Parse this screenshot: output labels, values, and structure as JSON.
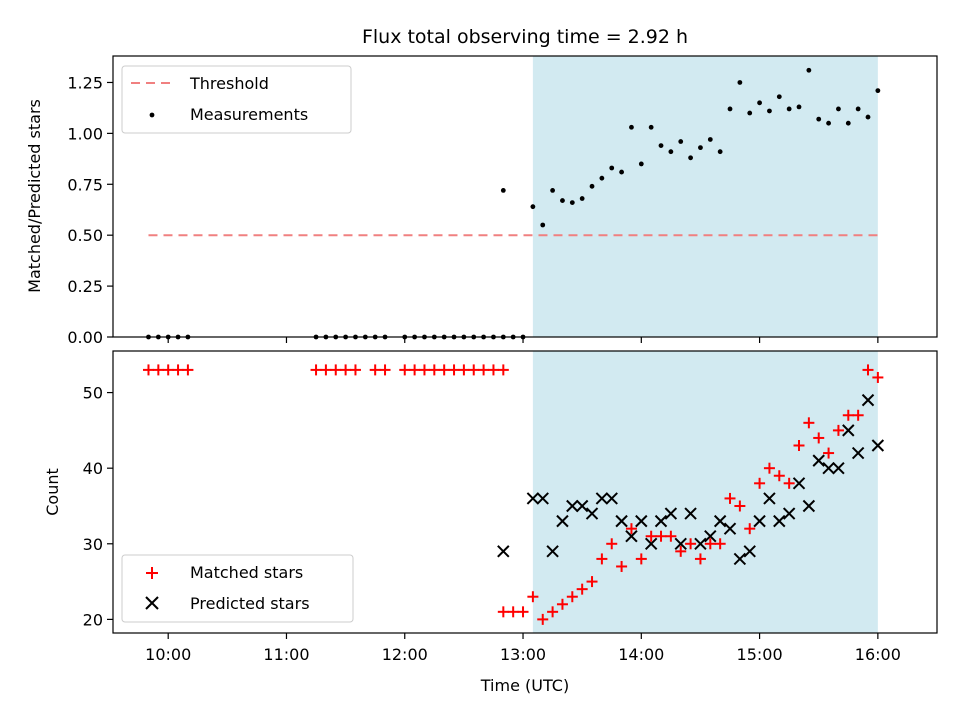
{
  "title": "Flux total observing time = 2.92 h",
  "chart_data": [
    {
      "type": "scatter",
      "panel": "top",
      "ylabel": "Matched/Predicted stars",
      "ylim": [
        0,
        1.38
      ],
      "xlim": [
        "09:32",
        "16:30"
      ],
      "yticks": [
        0,
        0.25,
        0.5,
        0.75,
        1.0,
        1.25
      ],
      "ytick_labels": [
        "0.00",
        "0.25",
        "0.50",
        "0.75",
        "1.00",
        "1.25"
      ],
      "shaded_region": {
        "from": "13:05",
        "to": "16:00",
        "color": "#add8e6"
      },
      "legend": {
        "placement": "top-left",
        "entries": [
          "Threshold",
          "Measurements"
        ]
      },
      "threshold": {
        "name": "Threshold",
        "value": 0.5,
        "x_from": "09:50",
        "x_to": "16:00",
        "color": "#f08080"
      },
      "series": [
        {
          "name": "Measurements",
          "color": "#000000",
          "points": [
            [
              "09:50",
              0
            ],
            [
              "09:55",
              0
            ],
            [
              "10:00",
              0
            ],
            [
              "10:05",
              0
            ],
            [
              "10:10",
              0
            ],
            [
              "11:15",
              0
            ],
            [
              "11:20",
              0
            ],
            [
              "11:25",
              0
            ],
            [
              "11:30",
              0
            ],
            [
              "11:35",
              0
            ],
            [
              "11:40",
              0
            ],
            [
              "11:45",
              0
            ],
            [
              "11:50",
              0
            ],
            [
              "12:00",
              0
            ],
            [
              "12:05",
              0
            ],
            [
              "12:10",
              0
            ],
            [
              "12:15",
              0
            ],
            [
              "12:20",
              0
            ],
            [
              "12:25",
              0
            ],
            [
              "12:30",
              0
            ],
            [
              "12:35",
              0
            ],
            [
              "12:40",
              0
            ],
            [
              "12:45",
              0
            ],
            [
              "12:50",
              0
            ],
            [
              "12:55",
              0
            ],
            [
              "13:00",
              0
            ],
            [
              "12:50",
              0.72
            ],
            [
              "13:05",
              0.64
            ],
            [
              "13:10",
              0.55
            ],
            [
              "13:15",
              0.72
            ],
            [
              "13:20",
              0.67
            ],
            [
              "13:25",
              0.66
            ],
            [
              "13:30",
              0.68
            ],
            [
              "13:35",
              0.74
            ],
            [
              "13:40",
              0.78
            ],
            [
              "13:45",
              0.83
            ],
            [
              "13:50",
              0.81
            ],
            [
              "13:55",
              1.03
            ],
            [
              "14:00",
              0.85
            ],
            [
              "14:05",
              1.03
            ],
            [
              "14:10",
              0.94
            ],
            [
              "14:15",
              0.91
            ],
            [
              "14:20",
              0.96
            ],
            [
              "14:25",
              0.88
            ],
            [
              "14:30",
              0.93
            ],
            [
              "14:35",
              0.97
            ],
            [
              "14:40",
              0.91
            ],
            [
              "14:45",
              1.12
            ],
            [
              "14:50",
              1.25
            ],
            [
              "14:55",
              1.1
            ],
            [
              "15:00",
              1.15
            ],
            [
              "15:05",
              1.11
            ],
            [
              "15:10",
              1.18
            ],
            [
              "15:15",
              1.12
            ],
            [
              "15:20",
              1.13
            ],
            [
              "15:25",
              1.31
            ],
            [
              "15:30",
              1.07
            ],
            [
              "15:35",
              1.05
            ],
            [
              "15:40",
              1.12
            ],
            [
              "15:45",
              1.05
            ],
            [
              "15:50",
              1.12
            ],
            [
              "15:55",
              1.08
            ],
            [
              "16:00",
              1.21
            ]
          ]
        }
      ]
    },
    {
      "type": "scatter",
      "panel": "bottom",
      "xlabel": "Time (UTC)",
      "ylabel": "Count",
      "ylim": [
        18.2,
        55.5
      ],
      "xlim": [
        "09:32",
        "16:30"
      ],
      "yticks": [
        20,
        30,
        40,
        50
      ],
      "xticks": [
        "10:00",
        "11:00",
        "12:00",
        "13:00",
        "14:00",
        "15:00",
        "16:00"
      ],
      "shaded_region": {
        "from": "13:05",
        "to": "16:00",
        "color": "#add8e6"
      },
      "legend": {
        "placement": "bottom-left",
        "entries": [
          "Matched stars",
          "Predicted stars"
        ]
      },
      "series": [
        {
          "name": "Matched stars",
          "marker": "plus",
          "color": "#ff0000",
          "points": [
            [
              "09:50",
              53
            ],
            [
              "09:55",
              53
            ],
            [
              "10:00",
              53
            ],
            [
              "10:05",
              53
            ],
            [
              "10:10",
              53
            ],
            [
              "11:15",
              53
            ],
            [
              "11:20",
              53
            ],
            [
              "11:25",
              53
            ],
            [
              "11:30",
              53
            ],
            [
              "11:35",
              53
            ],
            [
              "11:45",
              53
            ],
            [
              "11:50",
              53
            ],
            [
              "12:00",
              53
            ],
            [
              "12:05",
              53
            ],
            [
              "12:10",
              53
            ],
            [
              "12:15",
              53
            ],
            [
              "12:20",
              53
            ],
            [
              "12:25",
              53
            ],
            [
              "12:30",
              53
            ],
            [
              "12:35",
              53
            ],
            [
              "12:40",
              53
            ],
            [
              "12:45",
              53
            ],
            [
              "12:50",
              53
            ],
            [
              "12:50",
              21
            ],
            [
              "12:55",
              21
            ],
            [
              "13:00",
              21
            ],
            [
              "13:05",
              23
            ],
            [
              "13:10",
              20
            ],
            [
              "13:15",
              21
            ],
            [
              "13:20",
              22
            ],
            [
              "13:25",
              23
            ],
            [
              "13:30",
              24
            ],
            [
              "13:35",
              25
            ],
            [
              "13:40",
              28
            ],
            [
              "13:45",
              30
            ],
            [
              "13:50",
              27
            ],
            [
              "13:55",
              32
            ],
            [
              "14:00",
              28
            ],
            [
              "14:05",
              31
            ],
            [
              "14:10",
              31
            ],
            [
              "14:15",
              31
            ],
            [
              "14:20",
              29
            ],
            [
              "14:25",
              30
            ],
            [
              "14:30",
              28
            ],
            [
              "14:35",
              30
            ],
            [
              "14:40",
              30
            ],
            [
              "14:45",
              36
            ],
            [
              "14:50",
              35
            ],
            [
              "14:55",
              32
            ],
            [
              "15:00",
              38
            ],
            [
              "15:05",
              40
            ],
            [
              "15:10",
              39
            ],
            [
              "15:15",
              38
            ],
            [
              "15:20",
              43
            ],
            [
              "15:25",
              46
            ],
            [
              "15:30",
              44
            ],
            [
              "15:35",
              42
            ],
            [
              "15:40",
              45
            ],
            [
              "15:45",
              47
            ],
            [
              "15:50",
              47
            ],
            [
              "15:55",
              53
            ],
            [
              "16:00",
              52
            ]
          ]
        },
        {
          "name": "Predicted stars",
          "marker": "x",
          "color": "#000000",
          "points": [
            [
              "12:50",
              29
            ],
            [
              "13:05",
              36
            ],
            [
              "13:10",
              36
            ],
            [
              "13:15",
              29
            ],
            [
              "13:20",
              33
            ],
            [
              "13:25",
              35
            ],
            [
              "13:30",
              35
            ],
            [
              "13:35",
              34
            ],
            [
              "13:40",
              36
            ],
            [
              "13:45",
              36
            ],
            [
              "13:50",
              33
            ],
            [
              "13:55",
              31
            ],
            [
              "14:00",
              33
            ],
            [
              "14:05",
              30
            ],
            [
              "14:10",
              33
            ],
            [
              "14:15",
              34
            ],
            [
              "14:20",
              30
            ],
            [
              "14:25",
              34
            ],
            [
              "14:30",
              30
            ],
            [
              "14:35",
              31
            ],
            [
              "14:40",
              33
            ],
            [
              "14:45",
              32
            ],
            [
              "14:50",
              28
            ],
            [
              "14:55",
              29
            ],
            [
              "15:00",
              33
            ],
            [
              "15:05",
              36
            ],
            [
              "15:10",
              33
            ],
            [
              "15:15",
              34
            ],
            [
              "15:20",
              38
            ],
            [
              "15:25",
              35
            ],
            [
              "15:30",
              41
            ],
            [
              "15:35",
              40
            ],
            [
              "15:40",
              40
            ],
            [
              "15:45",
              45
            ],
            [
              "15:50",
              42
            ],
            [
              "15:55",
              49
            ],
            [
              "16:00",
              43
            ]
          ]
        }
      ]
    }
  ]
}
